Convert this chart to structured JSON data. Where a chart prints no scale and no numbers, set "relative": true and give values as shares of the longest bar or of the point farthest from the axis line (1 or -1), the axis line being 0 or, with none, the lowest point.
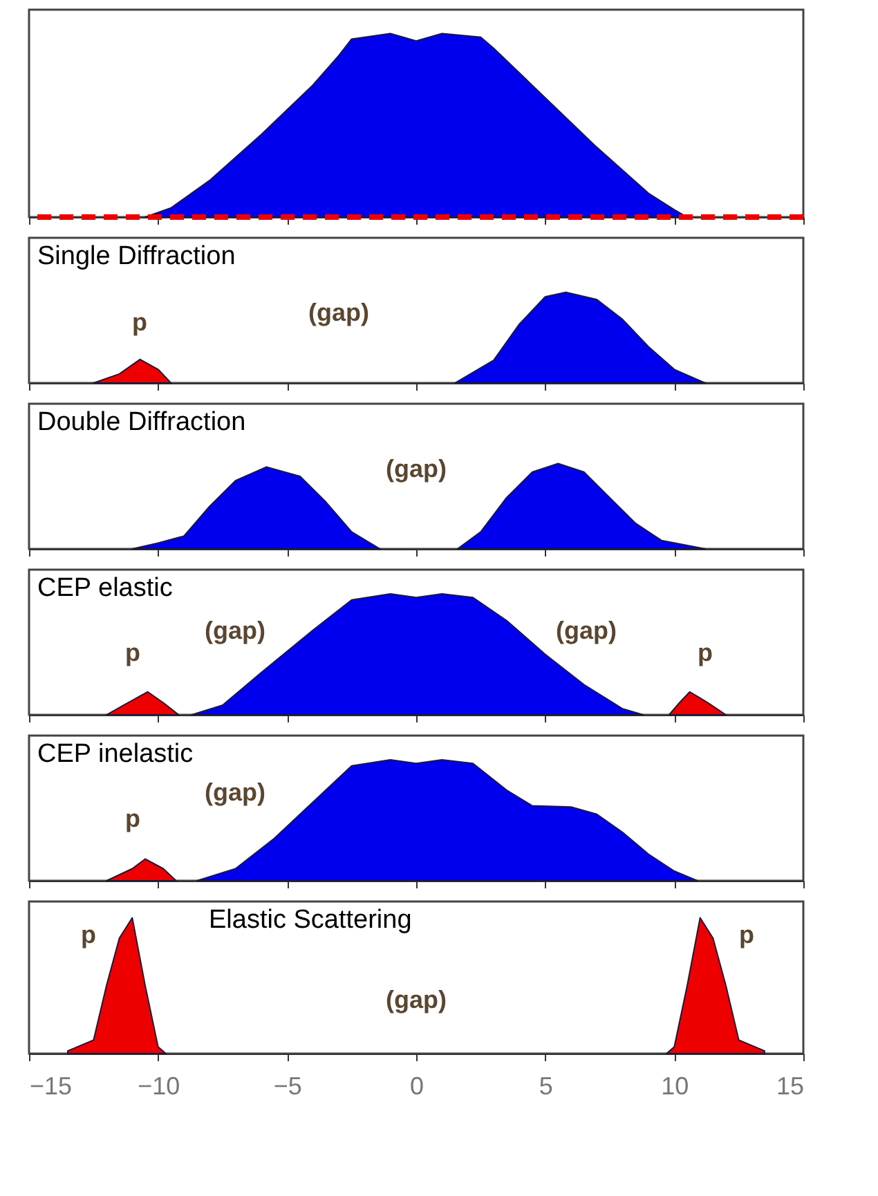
{
  "chart_data": [
    {
      "type": "area",
      "relative": true,
      "xlim": [
        -15,
        15
      ],
      "xticks": [
        -15,
        -10,
        -5,
        0,
        5,
        10,
        15
      ],
      "tick_labels": false,
      "series": [
        {
          "color": "#0000ee",
          "x": [
            -10.5,
            -9.5,
            -8,
            -6,
            -4,
            -3,
            -2.5,
            -1,
            0,
            1,
            2.5,
            3,
            5,
            7,
            9,
            10,
            10.5
          ],
          "values": [
            0,
            0.05,
            0.2,
            0.45,
            0.72,
            0.88,
            0.97,
            1.0,
            0.96,
            1.0,
            0.98,
            0.92,
            0.65,
            0.38,
            0.13,
            0.04,
            0
          ]
        }
      ],
      "ref_lines": [
        {
          "axis": "y",
          "value": 0,
          "color": "#ee0000",
          "line_style": "dashed"
        }
      ]
    },
    {
      "type": "area",
      "relative": true,
      "title": "Single Diffraction",
      "xlim": [
        -15,
        15
      ],
      "xticks": [
        -15,
        -10,
        -5,
        0,
        5,
        10,
        15
      ],
      "tick_labels": false,
      "series": [
        {
          "color": "#0000ee",
          "x": [
            1.5,
            3,
            4,
            5,
            5.8,
            7,
            8,
            9,
            10,
            11.2
          ],
          "values": [
            0,
            0.25,
            0.65,
            0.95,
            1.0,
            0.92,
            0.7,
            0.4,
            0.15,
            0
          ]
        },
        {
          "color": "#ee0000",
          "x": [
            -12.5,
            -11.5,
            -10.7,
            -10,
            -9.5
          ],
          "values": [
            0,
            0.1,
            0.26,
            0.15,
            0
          ]
        }
      ],
      "annotations": [
        "p",
        "(gap)"
      ]
    },
    {
      "type": "area",
      "relative": true,
      "title": "Double Diffraction",
      "xlim": [
        -15,
        15
      ],
      "xticks": [
        -15,
        -10,
        -5,
        0,
        5,
        10,
        15
      ],
      "tick_labels": false,
      "series": [
        {
          "color": "#0000ee",
          "x": [
            -11,
            -10,
            -9,
            -8,
            -7,
            -5.8,
            -4.5,
            -3.5,
            -2.5,
            -1.4
          ],
          "values": [
            0,
            0.07,
            0.15,
            0.5,
            0.8,
            0.96,
            0.85,
            0.55,
            0.2,
            0
          ]
        },
        {
          "color": "#0000ee",
          "x": [
            1.6,
            2.5,
            3.5,
            4.5,
            5.5,
            6.5,
            7.5,
            8.5,
            9.5,
            11.2
          ],
          "values": [
            0,
            0.2,
            0.6,
            0.9,
            1.0,
            0.9,
            0.6,
            0.3,
            0.1,
            0
          ]
        }
      ],
      "annotations": [
        "(gap)"
      ]
    },
    {
      "type": "area",
      "relative": true,
      "title": "CEP elastic",
      "xlim": [
        -15,
        15
      ],
      "xticks": [
        -15,
        -10,
        -5,
        0,
        5,
        10,
        15
      ],
      "tick_labels": false,
      "series": [
        {
          "color": "#0000ee",
          "x": [
            -8.7,
            -7.5,
            -6,
            -4,
            -2.5,
            -1,
            0,
            1,
            2.2,
            3.5,
            5,
            6.5,
            8,
            8.8
          ],
          "values": [
            0,
            0.08,
            0.35,
            0.7,
            0.95,
            1.0,
            0.97,
            1.0,
            0.97,
            0.78,
            0.5,
            0.25,
            0.05,
            0
          ]
        },
        {
          "color": "#ee0000",
          "x": [
            -12,
            -11,
            -10.4,
            -9.8,
            -9.2
          ],
          "values": [
            0,
            0.12,
            0.19,
            0.1,
            0
          ]
        },
        {
          "color": "#ee0000",
          "x": [
            9.8,
            10.2,
            10.6,
            11.3,
            12
          ],
          "values": [
            0,
            0.1,
            0.19,
            0.1,
            0
          ]
        }
      ],
      "annotations": [
        "p",
        "(gap)",
        "(gap)",
        "p"
      ]
    },
    {
      "type": "area",
      "relative": true,
      "title": "CEP inelastic",
      "xlim": [
        -15,
        15
      ],
      "xticks": [
        -15,
        -10,
        -5,
        0,
        5,
        10,
        15
      ],
      "tick_labels": false,
      "series": [
        {
          "color": "#0000ee",
          "x": [
            -8.5,
            -7,
            -5.5,
            -4,
            -2.5,
            -1,
            0,
            1,
            2.2,
            3.5,
            4.5,
            6,
            7,
            8,
            9,
            10,
            10.9
          ],
          "values": [
            0,
            0.1,
            0.35,
            0.65,
            0.95,
            1.0,
            0.97,
            1.0,
            0.97,
            0.75,
            0.62,
            0.61,
            0.55,
            0.4,
            0.22,
            0.08,
            0
          ]
        },
        {
          "color": "#ee0000",
          "x": [
            -12,
            -11,
            -10.5,
            -9.8,
            -9.3
          ],
          "values": [
            0,
            0.1,
            0.18,
            0.1,
            0
          ]
        }
      ],
      "annotations": [
        "p",
        "(gap)"
      ]
    },
    {
      "type": "area",
      "relative": true,
      "title": "Elastic Scattering",
      "xlim": [
        -15,
        15
      ],
      "xticks": [
        -15,
        -10,
        -5,
        0,
        5,
        10,
        15
      ],
      "tick_labels": "x",
      "series": [
        {
          "color": "#ee0000",
          "x": [
            -13.5,
            -12.5,
            -12,
            -11.5,
            -11,
            -10.5,
            -10,
            -9.7
          ],
          "values": [
            0.02,
            0.1,
            0.5,
            0.85,
            1.0,
            0.5,
            0.05,
            0
          ]
        },
        {
          "color": "#ee0000",
          "x": [
            9.7,
            10,
            10.5,
            11,
            11.5,
            12,
            12.5,
            13.5
          ],
          "values": [
            0,
            0.05,
            0.5,
            1.0,
            0.85,
            0.5,
            0.1,
            0.02
          ]
        }
      ],
      "annotations": [
        "p",
        "p",
        "(gap)"
      ]
    }
  ]
}
